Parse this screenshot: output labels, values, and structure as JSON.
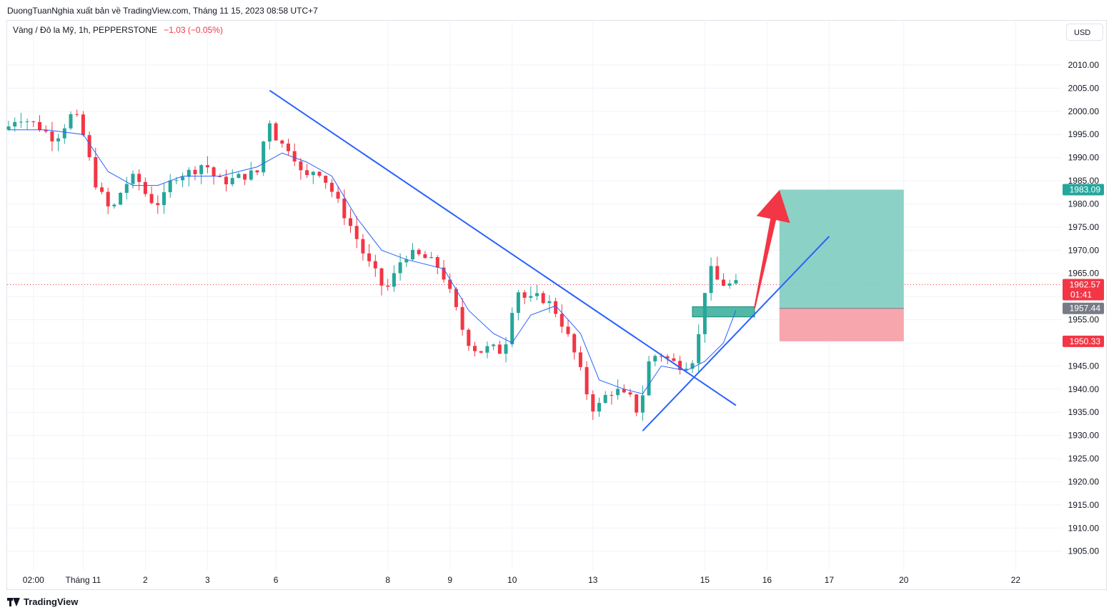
{
  "header": {
    "publish_line": "DuongTuanNghia xuất bản về TradingView.com, Tháng 11 15, 2023 08:58 UTC+7"
  },
  "symbol": {
    "description": "Vàng / Đô la Mỹ, 1h, PEPPERSTONE",
    "change": "−1.03 (−0.05%)"
  },
  "toolbar": {
    "currency": "USD"
  },
  "footer": {
    "brand": "TradingView"
  },
  "colors": {
    "up": "#26a69a",
    "down": "#f23645",
    "trendline": "#2962ff",
    "ma": "#2962ff",
    "profit_zone": "#7fccc0",
    "loss_zone": "#f7a1a9",
    "arrow": "#f23645",
    "grid": "#f0f3fa"
  },
  "chart_data": {
    "type": "candlestick",
    "title": "",
    "xlabel": "",
    "ylabel": "",
    "ylim": [
      1902,
      2016
    ],
    "y_ticks": [
      "2010.00",
      "2005.00",
      "2000.00",
      "1995.00",
      "1990.00",
      "1985.00",
      "1980.00",
      "1975.00",
      "1970.00",
      "1965.00",
      "1960.00",
      "1955.00",
      "1950.00",
      "1945.00",
      "1940.00",
      "1935.00",
      "1930.00",
      "1925.00",
      "1920.00",
      "1915.00",
      "1910.00",
      "1905.00"
    ],
    "y_tick_values": [
      2010,
      2005,
      2000,
      1995,
      1990,
      1985,
      1980,
      1975,
      1970,
      1965,
      1960,
      1955,
      1950,
      1945,
      1940,
      1935,
      1930,
      1925,
      1920,
      1915,
      1910,
      1905
    ],
    "x_ticks": [
      {
        "label": "02:00",
        "bar": 4
      },
      {
        "label": "Tháng 11",
        "bar": 12
      },
      {
        "label": "2",
        "bar": 22
      },
      {
        "label": "3",
        "bar": 32
      },
      {
        "label": "6",
        "bar": 43
      },
      {
        "label": "8",
        "bar": 61
      },
      {
        "label": "9",
        "bar": 71
      },
      {
        "label": "10",
        "bar": 81
      },
      {
        "label": "13",
        "bar": 94
      },
      {
        "label": "15",
        "bar": 112
      },
      {
        "label": "16",
        "bar": 122
      },
      {
        "label": "17",
        "bar": 132
      },
      {
        "label": "20",
        "bar": 144
      },
      {
        "label": "22",
        "bar": 162
      }
    ],
    "price_path": [
      [
        0,
        1996
      ],
      [
        2,
        1999
      ],
      [
        5,
        1997
      ],
      [
        8,
        1994
      ],
      [
        11,
        2000
      ],
      [
        13,
        1993
      ],
      [
        14,
        1986
      ],
      [
        15,
        1983
      ],
      [
        17,
        1978
      ],
      [
        19,
        1984
      ],
      [
        21,
        1986
      ],
      [
        23,
        1981
      ],
      [
        25,
        1980
      ],
      [
        27,
        1986
      ],
      [
        30,
        1987
      ],
      [
        32,
        1989
      ],
      [
        34,
        1985
      ],
      [
        36,
        1985
      ],
      [
        38,
        1986
      ],
      [
        41,
        1987
      ],
      [
        42,
        2000
      ],
      [
        43,
        1996
      ],
      [
        44,
        1993
      ],
      [
        46,
        1992
      ],
      [
        48,
        1985
      ],
      [
        50,
        1988
      ],
      [
        52,
        1984
      ],
      [
        54,
        1979
      ],
      [
        56,
        1974
      ],
      [
        58,
        1968
      ],
      [
        60,
        1964
      ],
      [
        61,
        1961
      ],
      [
        62,
        1963
      ],
      [
        64,
        1969
      ],
      [
        66,
        1969
      ],
      [
        68,
        1968
      ],
      [
        70,
        1966
      ],
      [
        72,
        1959
      ],
      [
        74,
        1951
      ],
      [
        76,
        1948
      ],
      [
        78,
        1949
      ],
      [
        80,
        1948
      ],
      [
        81,
        1953
      ],
      [
        82,
        1962
      ],
      [
        84,
        1959
      ],
      [
        86,
        1960
      ],
      [
        88,
        1958
      ],
      [
        90,
        1953
      ],
      [
        92,
        1946
      ],
      [
        94,
        1937
      ],
      [
        95,
        1935
      ],
      [
        96,
        1938
      ],
      [
        98,
        1940
      ],
      [
        100,
        1938
      ],
      [
        101,
        1938
      ],
      [
        102,
        1933
      ],
      [
        103,
        1945
      ],
      [
        105,
        1948
      ],
      [
        107,
        1946
      ],
      [
        109,
        1945
      ],
      [
        111,
        1947
      ],
      [
        112,
        1956
      ],
      [
        113,
        1967
      ],
      [
        114,
        1964
      ],
      [
        115,
        1963
      ],
      [
        116,
        1962.5
      ],
      [
        117,
        1962.57
      ]
    ],
    "moving_average": [
      [
        0,
        1996
      ],
      [
        6,
        1996
      ],
      [
        12,
        1995
      ],
      [
        16,
        1987
      ],
      [
        20,
        1984
      ],
      [
        24,
        1984
      ],
      [
        28,
        1986
      ],
      [
        34,
        1986
      ],
      [
        40,
        1988
      ],
      [
        44,
        1991
      ],
      [
        48,
        1989
      ],
      [
        52,
        1986
      ],
      [
        56,
        1977
      ],
      [
        60,
        1970
      ],
      [
        64,
        1968
      ],
      [
        70,
        1966
      ],
      [
        74,
        1957
      ],
      [
        78,
        1952
      ],
      [
        81,
        1950
      ],
      [
        84,
        1956
      ],
      [
        88,
        1958
      ],
      [
        92,
        1952
      ],
      [
        95,
        1942
      ],
      [
        99,
        1940
      ],
      [
        102,
        1939
      ],
      [
        105,
        1945
      ],
      [
        109,
        1944
      ],
      [
        112,
        1946
      ],
      [
        115,
        1950
      ],
      [
        117,
        1957
      ]
    ],
    "trendlines": [
      {
        "name": "downtrend",
        "from": [
          42,
          2004.5
        ],
        "to": [
          117,
          1936.5
        ]
      },
      {
        "name": "uptrend",
        "from": [
          102,
          1931
        ],
        "to": [
          132,
          1973
        ]
      }
    ],
    "demand_zone": {
      "from_bar": 110,
      "to_bar": 120,
      "top": 1957.8,
      "bottom": 1955.6
    },
    "position": {
      "from_bar": 124,
      "to_bar": 144,
      "target": 1983.09,
      "entry": 1957.44,
      "stop": 1950.33
    },
    "arrow": {
      "from": [
        120,
        1957.5
      ],
      "to": [
        124,
        1983
      ]
    },
    "price_labels": [
      {
        "text": "1983.09",
        "value": 1983.09,
        "color": "#26a69a"
      },
      {
        "text": "1962.57",
        "sub": "01:41",
        "value": 1962.57,
        "color": "#f23645"
      },
      {
        "text": "1957.44",
        "value": 1957.44,
        "color": "#787b86"
      },
      {
        "text": "1950.33",
        "value": 1950.33,
        "color": "#f23645"
      }
    ],
    "last_price": 1962.57,
    "bar_count": 118
  }
}
